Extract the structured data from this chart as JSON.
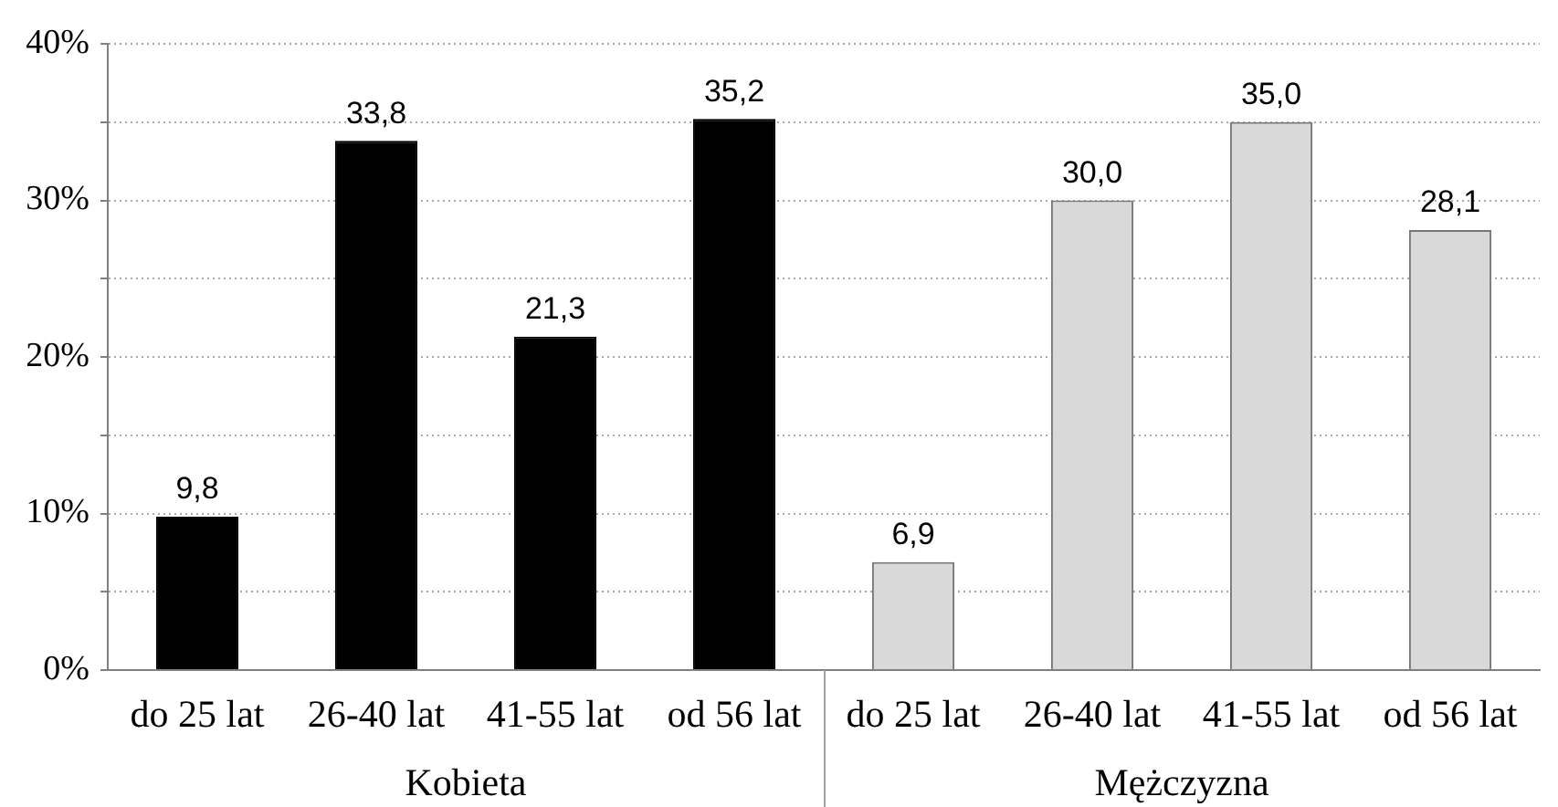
{
  "chart_data": {
    "type": "bar",
    "categories": [
      "do 25 lat",
      "26-40 lat",
      "41-55 lat",
      "od 56 lat",
      "do 25 lat",
      "26-40 lat",
      "41-55 lat",
      "od 56 lat"
    ],
    "series": [
      {
        "name": "Kobieta",
        "color": "#000000",
        "values": [
          9.8,
          33.8,
          21.3,
          35.2,
          null,
          null,
          null,
          null
        ],
        "value_labels": [
          "9,8",
          "33,8",
          "21,3",
          "35,2",
          null,
          null,
          null,
          null
        ]
      },
      {
        "name": "Mężczyzna",
        "color": "#d9d9d9",
        "values": [
          null,
          null,
          null,
          null,
          6.9,
          30.0,
          35.0,
          28.1
        ],
        "value_labels": [
          null,
          null,
          null,
          null,
          "6,9",
          "30,0",
          "35,0",
          "28,1"
        ]
      }
    ],
    "ylim": [
      0,
      40
    ],
    "yticks": [
      {
        "value": 0,
        "label": "0%"
      },
      {
        "value": 5,
        "label": null
      },
      {
        "value": 10,
        "label": "10%"
      },
      {
        "value": 15,
        "label": null
      },
      {
        "value": 20,
        "label": "20%"
      },
      {
        "value": 25,
        "label": null
      },
      {
        "value": 30,
        "label": "30%"
      },
      {
        "value": 35,
        "label": null
      },
      {
        "value": 40,
        "label": "40%"
      }
    ],
    "grid": "y"
  }
}
